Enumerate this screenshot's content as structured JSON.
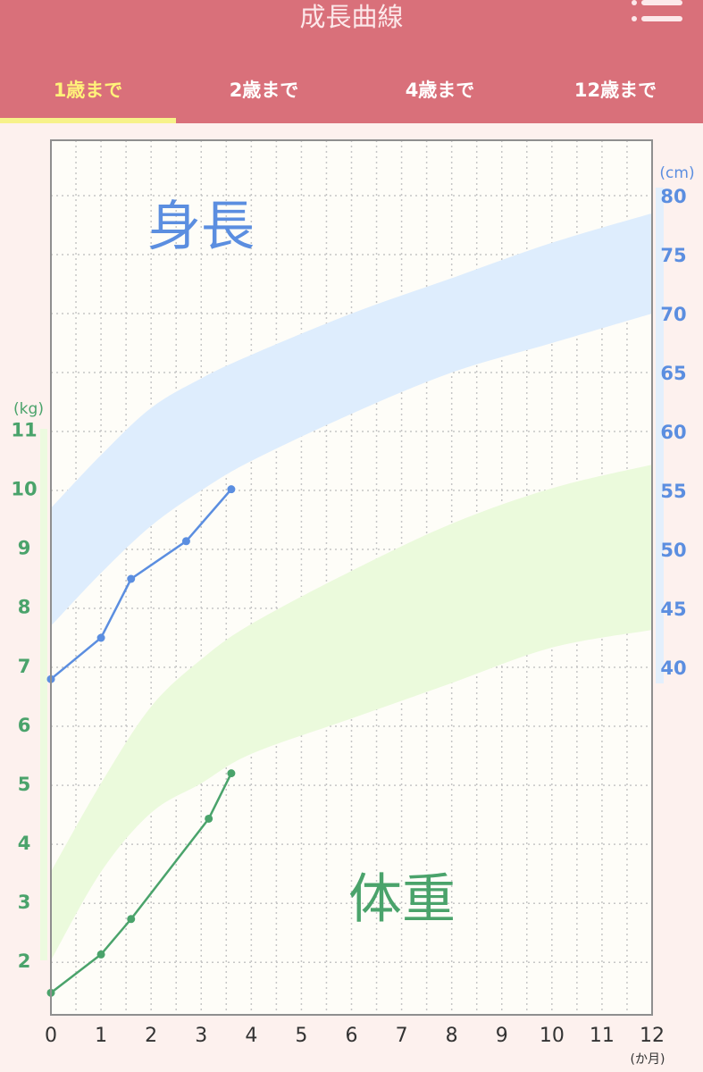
{
  "header": {
    "title": "成長曲線",
    "menu_icon": "menu-icon",
    "tabs": [
      {
        "label": "1歳まで",
        "active": true
      },
      {
        "label": "2歳まで",
        "active": false
      },
      {
        "label": "4歳まで",
        "active": false
      },
      {
        "label": "12歳まで",
        "active": false
      }
    ]
  },
  "colors": {
    "header": "#d9707a",
    "active_tab": "#fff27a",
    "height_line": "#5b8ee0",
    "weight_line": "#4aa36b",
    "height_band": "#deedfd",
    "weight_band": "#ebfadc"
  },
  "chart_data": {
    "type": "line",
    "x_ticks": [
      "0",
      "1",
      "2",
      "3",
      "4",
      "5",
      "6",
      "7",
      "8",
      "9",
      "10",
      "11",
      "12"
    ],
    "x_unit": "(か月)",
    "xlim": [
      0,
      12
    ],
    "height": {
      "label": "身長",
      "unit": "(cm)",
      "ylim": [
        38.7,
        85
      ],
      "ticks": [
        40,
        45,
        50,
        55,
        60,
        65,
        70,
        75,
        80
      ],
      "series": {
        "x": [
          0,
          1,
          1.6,
          2.7,
          3.6
        ],
        "values": [
          39,
          42.5,
          47.5,
          50.7,
          55.1
        ]
      },
      "band": {
        "upper": [
          [
            0,
            53.5
          ],
          [
            1,
            58
          ],
          [
            2,
            62
          ],
          [
            3,
            64.5
          ],
          [
            4,
            66.5
          ],
          [
            6,
            70
          ],
          [
            8,
            73
          ],
          [
            10,
            76
          ],
          [
            12,
            78.5
          ]
        ],
        "lower": [
          [
            0,
            43.5
          ],
          [
            1,
            48
          ],
          [
            2,
            52
          ],
          [
            3,
            55
          ],
          [
            4,
            57.5
          ],
          [
            6,
            61.5
          ],
          [
            8,
            65
          ],
          [
            10,
            67.5
          ],
          [
            12,
            70
          ]
        ]
      }
    },
    "weight": {
      "label": "体重",
      "unit": "(kg)",
      "ylim": [
        1.0,
        11.46
      ],
      "ticks": [
        2,
        3,
        4,
        5,
        6,
        7,
        8,
        9,
        10,
        11
      ],
      "series": {
        "x": [
          0,
          1,
          1.6,
          3.15,
          3.6
        ],
        "values": [
          1.45,
          2.1,
          2.7,
          4.4,
          5.17
        ]
      },
      "band": {
        "upper": [
          [
            0,
            3.5
          ],
          [
            1,
            5.0
          ],
          [
            2,
            6.3
          ],
          [
            3,
            7.1
          ],
          [
            4,
            7.7
          ],
          [
            6,
            8.6
          ],
          [
            8,
            9.4
          ],
          [
            10,
            10.0
          ],
          [
            12,
            10.4
          ]
        ],
        "lower": [
          [
            0,
            2.0
          ],
          [
            1,
            3.5
          ],
          [
            2,
            4.5
          ],
          [
            3,
            5.0
          ],
          [
            4,
            5.5
          ],
          [
            6,
            6.1
          ],
          [
            8,
            6.7
          ],
          [
            10,
            7.3
          ],
          [
            12,
            7.6
          ]
        ]
      }
    }
  }
}
